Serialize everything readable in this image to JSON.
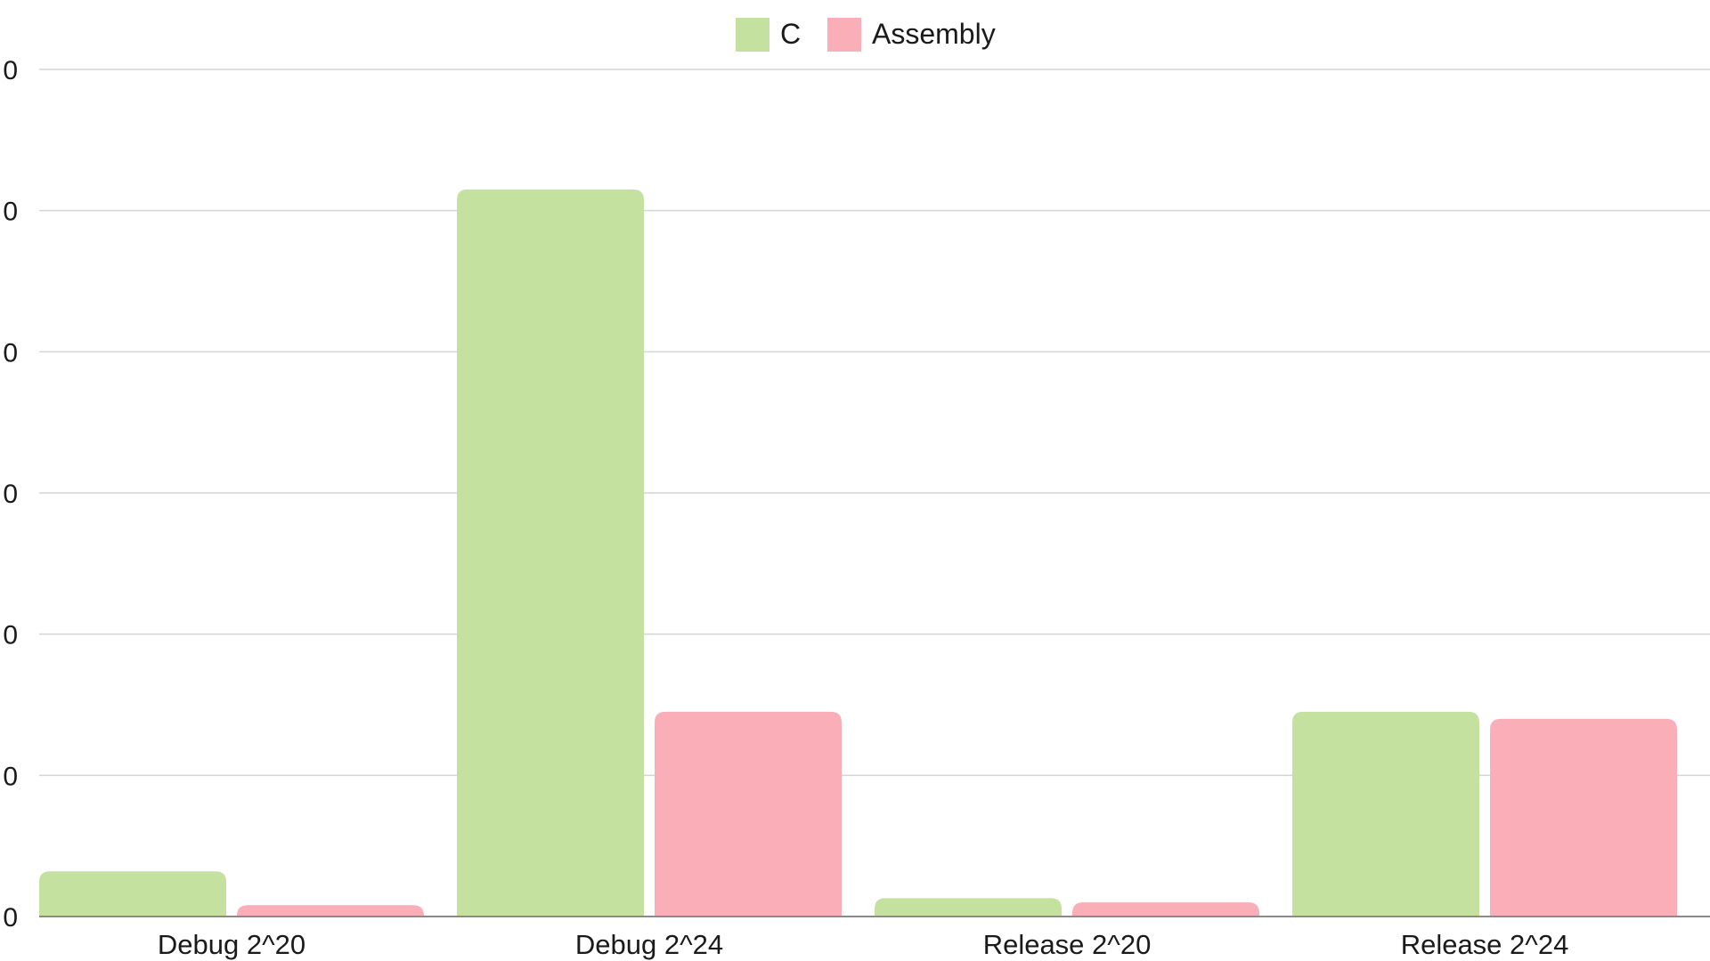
{
  "chart_data": {
    "type": "bar",
    "categories": [
      "Debug 2^20",
      "Debug 2^24",
      "Release 2^20",
      "Release 2^24"
    ],
    "series": [
      {
        "name": "C",
        "color": "#c5e1a0",
        "values": [
          3.2,
          51.5,
          1.3,
          14.5
        ]
      },
      {
        "name": "Assembly",
        "color": "#f9aeb8",
        "values": [
          0.8,
          14.5,
          1.0,
          14.0
        ]
      }
    ],
    "y_ticks": [
      "0",
      "0",
      "0",
      "0",
      "0",
      "0",
      "0"
    ],
    "ylim": [
      0,
      60
    ],
    "grid": true,
    "legend_position": "top-center",
    "title": "",
    "xlabel": "",
    "ylabel": ""
  }
}
